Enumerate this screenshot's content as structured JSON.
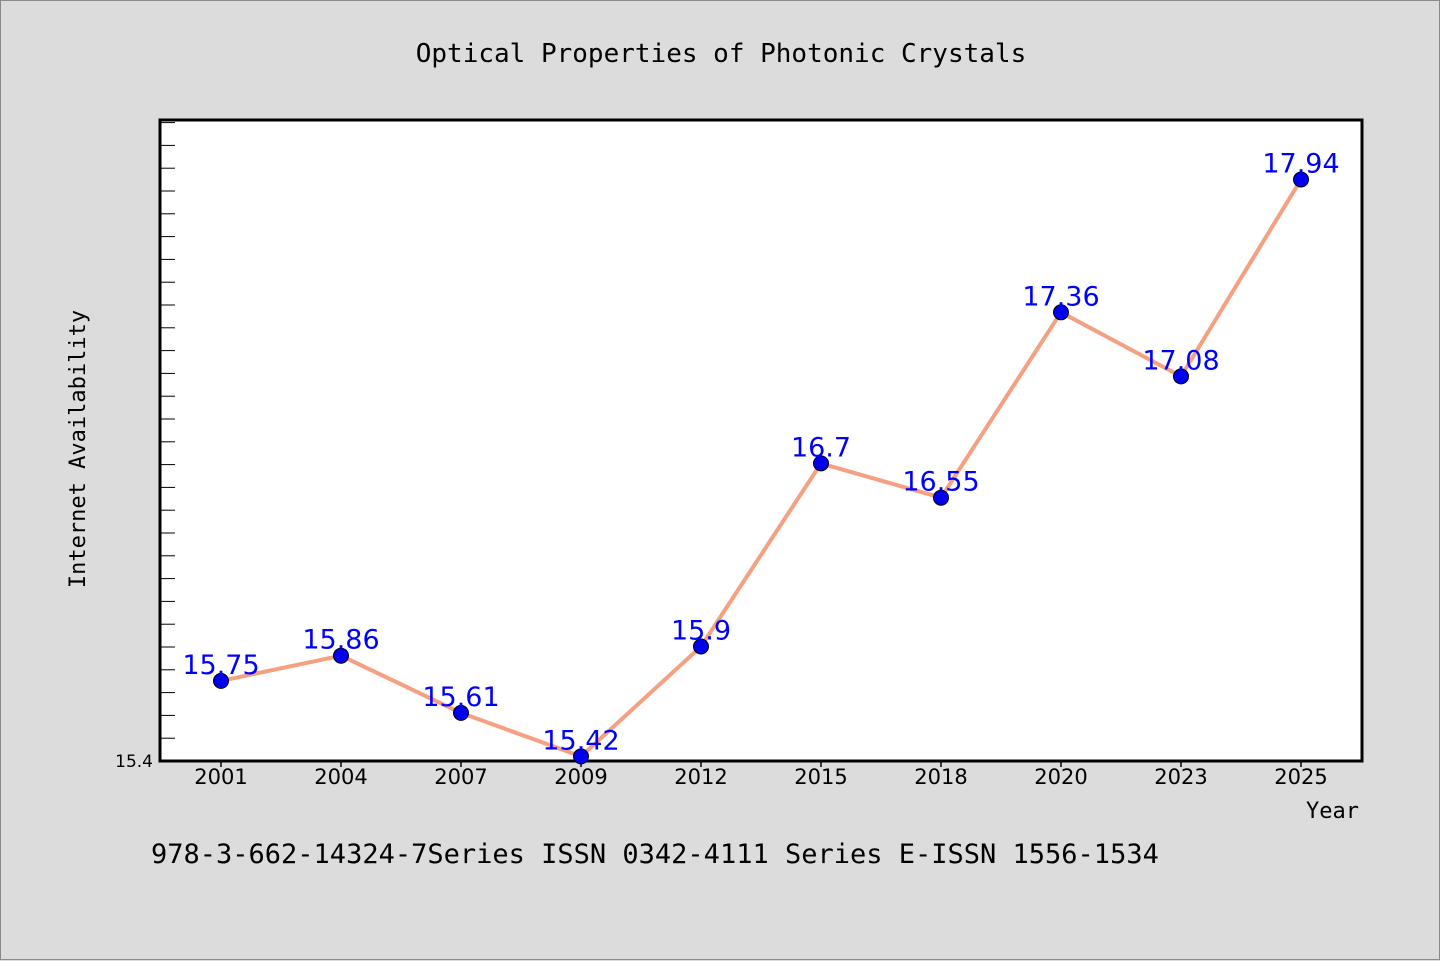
{
  "chart_data": {
    "type": "line",
    "title": "Optical Properties of Photonic Crystals",
    "xlabel": "Year",
    "ylabel": "Internet Availability",
    "categories": [
      "2001",
      "2004",
      "2007",
      "2009",
      "2012",
      "2015",
      "2018",
      "2020",
      "2023",
      "2025"
    ],
    "series": [
      {
        "values": [
          15.75,
          15.86,
          15.61,
          15.42,
          15.9,
          16.7,
          16.55,
          17.36,
          17.08,
          17.94
        ],
        "line_color": "#f4a081",
        "marker_color": "#0000ee",
        "label_color": "#0000ff"
      }
    ],
    "data_labels": [
      "15.75",
      "15.86",
      "15.61",
      "15.42",
      "15.9",
      "16.7",
      "16.55",
      "17.36",
      "17.08",
      "17.94"
    ],
    "ylim": [
      15.4,
      18.2
    ],
    "y_tick_labels": [
      "15.4"
    ],
    "grid": false
  },
  "footer_text": "978-3-662-14324-7Series ISSN 0342-4111 Series E-ISSN 1556-1534"
}
